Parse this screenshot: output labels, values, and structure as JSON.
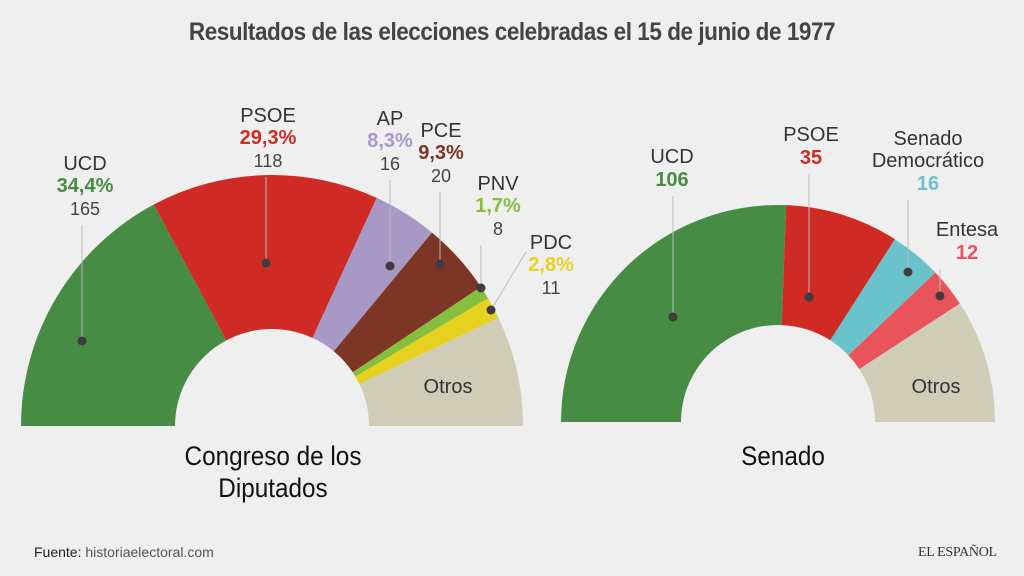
{
  "title": "Resultados de las elecciones celebradas el 15 de junio de 1977",
  "source_label": "Fuente:",
  "source_value": "historiaelectoral.com",
  "brand": "EL ESPAÑOL",
  "chart_data": [
    {
      "type": "pie",
      "variant": "half-donut",
      "name": "Congreso de los Diputados",
      "measure": "vote_percent",
      "slices": [
        {
          "party": "UCD",
          "percent": 34.4,
          "seats": 165,
          "color": "#478c44",
          "pct_label": "34,4%",
          "label_color": "#478c44"
        },
        {
          "party": "PSOE",
          "percent": 29.3,
          "seats": 118,
          "color": "#d02a24",
          "pct_label": "29,3%",
          "label_color": "#d02a24"
        },
        {
          "party": "AP",
          "percent": 8.3,
          "seats": 16,
          "color": "#a898c6",
          "pct_label": "8,3%",
          "label_color": "#a898c6"
        },
        {
          "party": "PCE",
          "percent": 9.3,
          "seats": 20,
          "color": "#7d3526",
          "pct_label": "9,3%",
          "label_color": "#7d3526"
        },
        {
          "party": "PNV",
          "percent": 1.7,
          "seats": 8,
          "color": "#86bf3e",
          "pct_label": "1,7%",
          "label_color": "#86bf3e"
        },
        {
          "party": "PDC",
          "percent": 2.8,
          "seats": 11,
          "color": "#e6d21e",
          "pct_label": "2,8%",
          "label_color": "#e6d21e"
        },
        {
          "party": "Otros",
          "percent": 14.2,
          "color": "#cfcdb8"
        }
      ]
    },
    {
      "type": "pie",
      "variant": "half-donut",
      "name": "Senado",
      "measure": "seats",
      "slices": [
        {
          "party": "UCD",
          "seats": 106,
          "color": "#478c44",
          "label_color": "#478c44"
        },
        {
          "party": "PSOE",
          "seats": 35,
          "color": "#d02a24",
          "label_color": "#d02a24"
        },
        {
          "party": "Senado Democrático",
          "seats": 16,
          "color": "#6ac3cb",
          "label_color": "#6ac3cb"
        },
        {
          "party": "Entesa",
          "seats": 12,
          "color": "#e8545a",
          "label_color": "#e8545a"
        },
        {
          "party": "Otros",
          "seats": 38,
          "color": "#cfcdb8"
        }
      ]
    }
  ]
}
